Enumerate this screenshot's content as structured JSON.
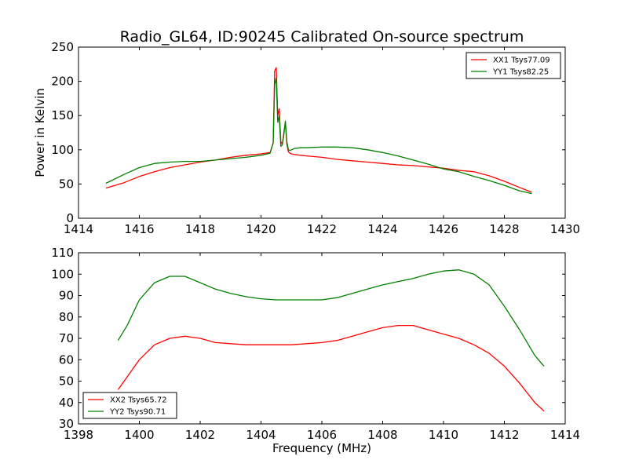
{
  "chart_data": [
    {
      "type": "line",
      "title": "Radio_GL64, ID:90245 Calibrated On-source spectrum",
      "xlabel": "",
      "ylabel": "Power in Kelvin",
      "xlim": [
        1414,
        1430
      ],
      "ylim": [
        0,
        250
      ],
      "xticks": [
        1414,
        1416,
        1418,
        1420,
        1422,
        1424,
        1426,
        1428,
        1430
      ],
      "yticks": [
        0,
        50,
        100,
        150,
        200,
        250
      ],
      "grid": false,
      "legend_position": "top-right",
      "series": [
        {
          "name": "XX1 Tsys77.09",
          "color": "#ff0000",
          "x": [
            1414.9,
            1415.5,
            1416,
            1416.5,
            1417,
            1417.5,
            1418,
            1418.5,
            1419,
            1419.5,
            1420,
            1420.3,
            1420.4,
            1420.45,
            1420.5,
            1420.55,
            1420.6,
            1420.65,
            1420.7,
            1420.75,
            1420.8,
            1420.85,
            1420.9,
            1420.95,
            1421.0,
            1421.1,
            1421.3,
            1421.5,
            1422,
            1422.5,
            1423,
            1423.5,
            1424,
            1424.5,
            1425,
            1425.5,
            1426,
            1426.5,
            1427,
            1427.5,
            1428,
            1428.5,
            1428.9
          ],
          "y": [
            44,
            52,
            61,
            68,
            74,
            78,
            82,
            85,
            89,
            92,
            94,
            96,
            110,
            215,
            220,
            150,
            160,
            112,
            108,
            125,
            140,
            108,
            97,
            95,
            94,
            93,
            92,
            91,
            89,
            86,
            84,
            82,
            80,
            78,
            77,
            75,
            73,
            70,
            68,
            62,
            54,
            45,
            38
          ]
        },
        {
          "name": "YY1 Tsys82.25",
          "color": "#008000",
          "x": [
            1414.9,
            1415.5,
            1416,
            1416.5,
            1417,
            1417.5,
            1418,
            1418.5,
            1419,
            1419.5,
            1420,
            1420.3,
            1420.4,
            1420.45,
            1420.5,
            1420.55,
            1420.6,
            1420.65,
            1420.7,
            1420.75,
            1420.8,
            1420.85,
            1420.9,
            1420.95,
            1421.0,
            1421.1,
            1421.3,
            1421.5,
            1422,
            1422.5,
            1423,
            1423.5,
            1424,
            1424.5,
            1425,
            1425.5,
            1426,
            1426.5,
            1427,
            1427.5,
            1428,
            1428.5,
            1428.9
          ],
          "y": [
            51,
            64,
            74,
            80,
            82,
            83,
            83,
            85,
            87,
            89,
            92,
            95,
            110,
            195,
            205,
            140,
            150,
            105,
            107,
            122,
            142,
            112,
            100,
            99,
            100,
            102,
            103,
            103,
            104,
            104,
            103,
            100,
            96,
            91,
            85,
            79,
            72,
            68,
            61,
            55,
            48,
            40,
            36
          ]
        }
      ]
    },
    {
      "type": "line",
      "title": "",
      "xlabel": "Frequency (MHz)",
      "ylabel": "",
      "xlim": [
        1398,
        1414
      ],
      "ylim": [
        30,
        110
      ],
      "xticks": [
        1398,
        1400,
        1402,
        1404,
        1406,
        1408,
        1410,
        1412,
        1414
      ],
      "yticks": [
        30,
        40,
        50,
        60,
        70,
        80,
        90,
        100,
        110
      ],
      "grid": false,
      "legend_position": "bottom-left",
      "series": [
        {
          "name": "XX2 Tsys65.72",
          "color": "#ff0000",
          "x": [
            1399.3,
            1399.6,
            1400,
            1400.5,
            1401,
            1401.5,
            1402,
            1402.5,
            1403,
            1403.5,
            1404,
            1404.5,
            1405,
            1405.5,
            1406,
            1406.5,
            1407,
            1407.5,
            1408,
            1408.5,
            1409,
            1409.5,
            1410,
            1410.5,
            1411,
            1411.5,
            1412,
            1412.5,
            1413,
            1413.3
          ],
          "y": [
            46,
            52,
            60,
            67,
            70,
            71,
            70,
            68,
            67.5,
            67,
            67,
            67,
            67,
            67.5,
            68,
            69,
            71,
            73,
            75,
            76,
            76,
            74,
            72,
            70,
            67,
            63,
            57,
            49,
            40,
            36
          ]
        },
        {
          "name": "YY2 Tsys90.71",
          "color": "#008000",
          "x": [
            1399.3,
            1399.6,
            1400,
            1400.5,
            1401,
            1401.5,
            1402,
            1402.5,
            1403,
            1403.5,
            1404,
            1404.5,
            1405,
            1405.5,
            1406,
            1406.5,
            1407,
            1407.5,
            1408,
            1408.5,
            1409,
            1409.5,
            1410,
            1410.5,
            1411,
            1411.5,
            1412,
            1412.5,
            1413,
            1413.3
          ],
          "y": [
            69,
            76,
            88,
            96,
            99,
            99,
            96,
            93,
            91,
            89.5,
            88.5,
            88,
            88,
            88,
            88,
            89,
            91,
            93,
            95,
            96.5,
            98,
            100,
            101.5,
            102,
            100,
            95,
            85,
            74,
            62,
            57
          ]
        }
      ]
    }
  ]
}
